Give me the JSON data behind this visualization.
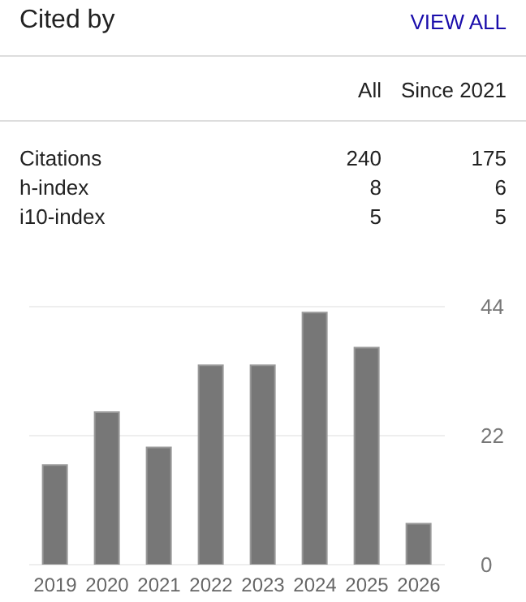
{
  "chart_data": {
    "type": "bar",
    "title": "Cited by",
    "annotations": [
      "VIEW ALL",
      "All",
      "Since 2021",
      "Citations",
      "240",
      "175",
      "h-index",
      "8",
      "6",
      "i10-index",
      "5",
      "5"
    ],
    "categories": [
      "2019",
      "2020",
      "2021",
      "2022",
      "2023",
      "2024",
      "2025",
      "2026"
    ],
    "values": [
      17,
      26,
      20,
      34,
      34,
      43,
      37,
      7
    ],
    "color": "#777777",
    "ylim": [
      0,
      44
    ],
    "yticks": [
      0,
      22,
      44
    ],
    "grid": "y",
    "legend": false
  }
}
